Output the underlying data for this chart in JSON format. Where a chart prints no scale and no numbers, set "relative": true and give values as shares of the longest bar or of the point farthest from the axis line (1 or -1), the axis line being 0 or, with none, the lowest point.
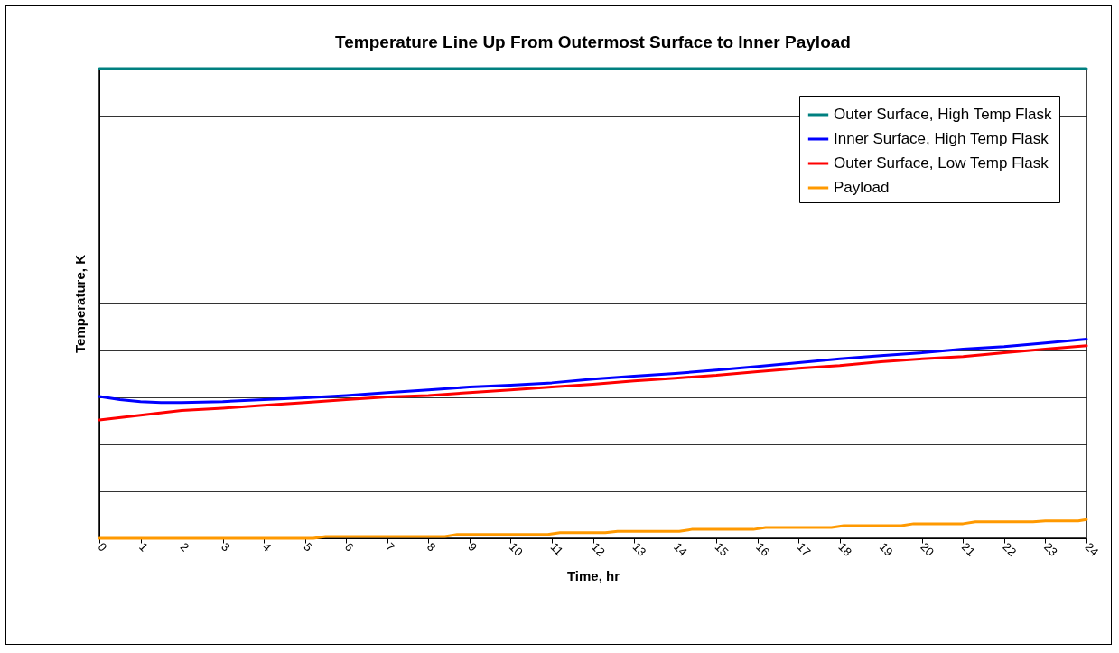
{
  "chart_data": {
    "type": "line",
    "title": "Temperature Line Up From Outermost Surface to Inner Payload",
    "xlabel": "Time, hr",
    "ylabel": "Temperature, K",
    "relative": true,
    "tick_labels": "x",
    "grid": "y",
    "legend": "top right",
    "marker": "none",
    "line_style": "solid",
    "xlim": [
      0,
      24
    ],
    "xticks": [
      0,
      1,
      2,
      3,
      4,
      5,
      6,
      7,
      8,
      9,
      10,
      11,
      12,
      13,
      14,
      15,
      16,
      17,
      18,
      19,
      20,
      21,
      22,
      23,
      24
    ],
    "series": [
      {
        "name": "Outer Surface, High Temp Flask",
        "color": "#008080",
        "x": [
          0,
          24
        ],
        "values": [
          1,
          1
        ]
      },
      {
        "name": "Inner Surface, High Temp Flask",
        "color": "#0000ff",
        "x": [
          0,
          0.5,
          1,
          1.5,
          2,
          3,
          4,
          5,
          6,
          7,
          8,
          9,
          10,
          11,
          12,
          13,
          14,
          15,
          16,
          17,
          18,
          19,
          20,
          21,
          22,
          23,
          24
        ],
        "values": [
          0.302,
          0.295,
          0.291,
          0.289,
          0.289,
          0.291,
          0.295,
          0.299,
          0.304,
          0.31,
          0.316,
          0.322,
          0.326,
          0.331,
          0.339,
          0.345,
          0.351,
          0.358,
          0.366,
          0.374,
          0.382,
          0.389,
          0.395,
          0.403,
          0.408,
          0.416,
          0.424
        ]
      },
      {
        "name": "Outer Surface, Low Temp Flask",
        "color": "#ff0000",
        "x": [
          0,
          1,
          2,
          3,
          4,
          5,
          6,
          7,
          8,
          9,
          10,
          11,
          12,
          13,
          14,
          15,
          16,
          17,
          18,
          19,
          20,
          21,
          22,
          23,
          24
        ],
        "values": [
          0.252,
          0.262,
          0.272,
          0.277,
          0.283,
          0.289,
          0.295,
          0.301,
          0.304,
          0.31,
          0.316,
          0.322,
          0.328,
          0.335,
          0.341,
          0.347,
          0.355,
          0.362,
          0.368,
          0.376,
          0.382,
          0.387,
          0.395,
          0.403,
          0.41
        ]
      },
      {
        "name": "Payload",
        "color": "#ff9900",
        "x": [
          0,
          5.2,
          5.5,
          8.4,
          8.7,
          10.9,
          11.2,
          12.3,
          12.6,
          14.1,
          14.4,
          15.9,
          16.2,
          17.8,
          18.1,
          19.5,
          19.8,
          21,
          21.3,
          22.7,
          23,
          23.8,
          24
        ],
        "values": [
          0,
          0,
          0.004,
          0.004,
          0.008,
          0.008,
          0.012,
          0.012,
          0.015,
          0.015,
          0.019,
          0.019,
          0.023,
          0.023,
          0.027,
          0.027,
          0.031,
          0.031,
          0.035,
          0.035,
          0.037,
          0.037,
          0.04
        ]
      }
    ]
  }
}
